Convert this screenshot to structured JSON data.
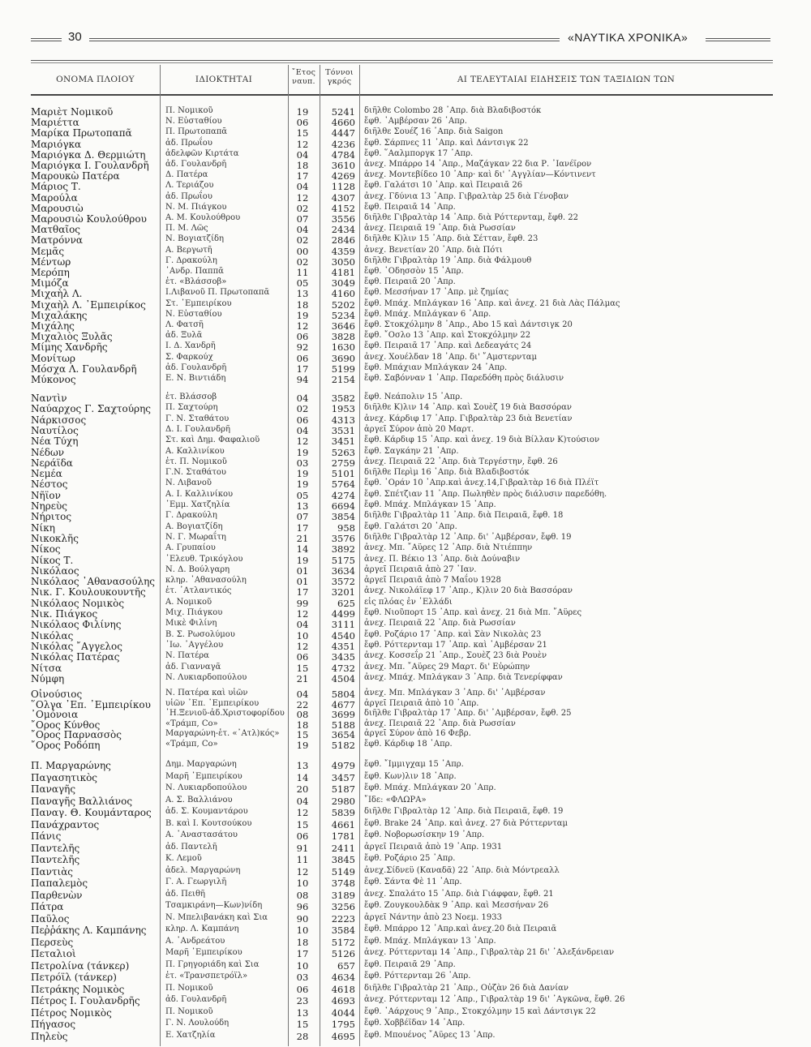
{
  "header": {
    "page_number": "30",
    "journal_title": "«ΝΑΥΤΙΚΑ ΧΡΟΝΙΚΑ»"
  },
  "table": {
    "columns": {
      "name": "ΟΝΟΜΑ ΠΛΟΙΟΥ",
      "owners": "ΙΔΙΟΚΤΗΤΑΙ",
      "year_1": "῎Ετος",
      "year_2": "ναυπ.",
      "tons_1": "Τόννοι",
      "tons_2": "γκρός",
      "news": "ΑΙ ΤΕΛΕΥΤΑΙΑΙ ΕΙΔΗΣΕΙΣ ΤΩΝ ΤΑΞΙΔΙΩΝ ΤΩΝ"
    },
    "groups": [
      {
        "rows": [
          [
            "Μαριὲτ Νομικοῦ",
            "Π. Νομικοῦ",
            "19",
            "5241",
            "διῆλθε Colombo 28 ᾿Απρ. διὰ Βλαδιβοστόκ"
          ],
          [
            "Μαριέττα",
            "Ν. Εὐσταθίου",
            "06",
            "4660",
            "ἔφθ. ᾿Αμβέρσαν 26 ᾿Απρ."
          ],
          [
            "Μαρίκα Πρωτοπαπᾶ",
            "Π. Πρωτοπαπᾶ",
            "15",
            "4447",
            "διῆλθε Σουέζ 16 ᾿Απρ. διὰ Saigon"
          ],
          [
            "Μαριόγκα",
            "ἀδ. Πρωΐου",
            "12",
            "4236",
            "ἔφθ. Σάρπνες 11 ᾿Απρ. καὶ Δάντσιγκ 22"
          ],
          [
            "Μαριόγκα Δ. Θερμιώτη",
            "ἀδελφῶν Κιρτάτα",
            "04",
            "4784",
            "ἔφθ. ῞Ααλμποργκ 17 ᾿Απρ."
          ],
          [
            "Μαριόγκα Ι. Γουλανδρῆ",
            "ἀδ. Γουλανδρῆ",
            "18",
            "3610",
            "ἀνεχ. Μπάρρο 14 ᾿Απρ., Μαζάγκαν 22 δια Ρ. ᾿Ιανέϊρον"
          ],
          [
            "Μαρουκὼ Πατέρα",
            "Δ. Πατέρα",
            "17",
            "4269",
            "ἀνεχ. Μοντεβίδεο 10 ᾿Απρ· καὶ δι' ᾿Αγγλίαν—Κόντινεντ"
          ],
          [
            "Μάριος Τ.",
            "Λ. Τεριάζου",
            "04",
            "1128",
            "ἔφθ. Γαλάτσι 10 ᾿Απρ. καὶ Πειραιᾶ 26"
          ],
          [
            "Μαρούλα",
            "ἀδ. Πρωΐου",
            "12",
            "4307",
            "ἀνεχ. Γδύνια 13 ᾿Απρ. Γιβραλτὰρ 25 διὰ Γένοβαν"
          ],
          [
            "Μαρουσιὼ",
            "Ν. Μ. Πιάγκου",
            "02",
            "4152",
            "ἔφθ. Πειραιᾶ 14 ᾿Απρ."
          ],
          [
            "Μαρουσιὼ Κουλούθρου",
            "Α. Μ. Κουλούθρου",
            "07",
            "3556",
            "διῆλθε Γιβραλτὰρ 14 ᾿Απρ. διὰ Ρόττερνταμ, ἔφθ. 22"
          ],
          [
            "Ματθαῖος",
            "Π. Μ. Λῶς",
            "04",
            "2434",
            "ἀνεχ. Πειραιᾶ 19 ᾿Απρ. διὰ Ρωσσίαν"
          ],
          [
            "Ματρόννα",
            "Ν. Βογιατζίδη",
            "02",
            "2846",
            "διῆλθε Κ)λιν 15 ᾿Απρ. διὰ Σέτταν, ἔφθ. 23"
          ],
          [
            "Μεμᾶς",
            "Α. Βεργωτῆ",
            "00",
            "4359",
            "ἀνεχ. Βενετίαν 20 ᾿Απρ. διὰ Πότι"
          ],
          [
            "Μέντωρ",
            "Γ. Δρακούλη",
            "02",
            "3050",
            "διῆλθε Γιβραλτὰρ 19 ᾿Απρ. διὰ Φάλμουθ"
          ],
          [
            "Μερόπη",
            "᾿Ανδρ. Παππᾶ",
            "11",
            "4181",
            "ἔφθ. ᾿Οδησσὸν 15 ᾿Απρ."
          ],
          [
            "Μιμόζα",
            "ἑτ. «Βλάσσοβ»",
            "05",
            "3049",
            "ἔφθ. Πειραιᾶ 20 ᾿Απρ."
          ],
          [
            "Μιχαὴλ Λ.",
            "Ι.Λιβανοῦ Π. Πρωτοπαπᾶ",
            "13",
            "4160",
            "ἔφθ. Μεσσήναν 17 ᾿Απρ. μὲ ζημίας"
          ],
          [
            "Μιχαὴλ Λ. ᾿Εμπειρίκος",
            "Στ. ᾿Εμπειρίκου",
            "18",
            "5202",
            "ἔφθ. Μπάχ. Μπλάγκαν 16 ᾿Απρ. καὶ ἀνεχ. 21 διὰ Λὰς Πάλμας"
          ],
          [
            "Μιχαλάκης",
            "Ν. Εὐσταθίου",
            "19",
            "5234",
            "ἔφθ. Μπάχ. Μπλάγκαν 6 ᾿Απρ."
          ],
          [
            "Μιχάλης",
            "Λ. Φατσῆ",
            "12",
            "3646",
            "ἔφθ. Στοκχόλμην 8 ᾿Απρ., Abo 15 καὶ Δάντσιγκ 20"
          ],
          [
            "Μιχαλιὸς Ξυλᾶς",
            "ἀδ. Ξυλᾶ",
            "06",
            "3828",
            "ἔφθ. ῎Οσλο 13 ᾿Απρ. καὶ Στοκχόλμην 22"
          ],
          [
            "Μίμης Χανδρῆς",
            "Ι. Δ. Χανδρῆ",
            "92",
            "1630",
            "ἔφθ. Πειραιᾶ 17 ᾿Απρ. καὶ Δεδεαγάτς 24"
          ],
          [
            "Μονίτωρ",
            "Σ. Φαρκούχ",
            "06",
            "3690",
            "ἀνεχ. Χουέλδαν 18 ᾿Απρ. δι' ῎Αμστερνταμ"
          ],
          [
            "Μόσχα Λ. Γουλανδρῆ",
            "ἀδ. Γουλανδρῆ",
            "17",
            "5199",
            "ἔφθ. Μπάχιαν Μπλάγκαν 24 ᾿Απρ."
          ],
          [
            "Μύκονος",
            "Ε. Ν. Βιντιάδη",
            "94",
            "2154",
            "ἔφθ. Σαβόνναν 1 ᾿Απρ. Παρεδόθη πρὸς διάλυσιν"
          ]
        ]
      },
      {
        "rows": [
          [
            "Ναντὶν",
            "ἑτ. Βλάσσοβ",
            "04",
            "3582",
            "ἔφθ. Νεάπολιν 15 ᾿Απρ."
          ],
          [
            "Ναύαρχος Γ. Σαχτούρης",
            "Π. Σαχτούρη",
            "02",
            "1953",
            "διῆλθε Κ)λιν 14 ᾿Απρ. καὶ Σουὲζ 19 διὰ Βασσόραν"
          ],
          [
            "Νάρκισσος",
            "Γ. Ν. Σταθάτου",
            "06",
            "4313",
            "ἀνεχ. Κάρδιφ 17 ᾿Απρ. Γιβραλτὰρ 23 διὰ Βενετίαν"
          ],
          [
            "Ναυτίλος",
            "Δ. Ι. Γουλανδρῆ",
            "04",
            "3531",
            "ἀργεῖ Σύρον ἀπὸ 20 Μαρτ."
          ],
          [
            "Νέα Τύχη",
            "Στ. καὶ Δημ. Φαφαλιοῦ",
            "12",
            "3451",
            "ἔφθ. Κάρδιφ 15 ᾿Απρ. καὶ ἀνεχ. 19 διὰ Βίλλαν Κ)τούσιον"
          ],
          [
            "Νέδων",
            "Α. Καλλινίκου",
            "19",
            "5263",
            "ἔφθ. Σαγκάην 21 ᾿Απρ."
          ],
          [
            "Νεράϊδα",
            "ἑτ. Π. Νομικοῦ",
            "03",
            "2759",
            "ἀνεχ. Πειραιᾶ 22 ᾿Απρ. διὰ Τεργέστην, ἔφθ. 26"
          ],
          [
            "Νεμέα",
            "Γ.Ν. Σταθάτου",
            "19",
            "5101",
            "διῆλθε Περὶμ 16 ᾿Απρ. διὰ Βλαδιβοστόκ"
          ],
          [
            "Νέστος",
            "Ν. Λιβανοῦ",
            "19",
            "5764",
            "ἔφθ. ᾿Οράν 10 ᾿Απρ.καὶ ἀνεχ.14,Γιβραλτὰρ 16 διὰ Πλέϊτ"
          ],
          [
            "Νῆϊον",
            "Α. Ι. Καλλινίκου",
            "05",
            "4274",
            "ἔφθ. Σπέτζιαν 11 ᾿Απρ. Πωληθὲν πρὸς διάλυσιν παρεδόθη."
          ],
          [
            "Νηρεὺς",
            "᾿Εμμ. Χατζηλία",
            "13",
            "6694",
            "ἔφθ. Μπάχ. Μπλάγκαν 15 ᾿Απρ."
          ],
          [
            "Νήριτος",
            "Γ. Δρακούλη",
            "07",
            "3854",
            "διῆλθε Γιβραλτὰρ 11 ᾿Απρ. διὰ Πειραιᾶ, ἔφθ. 18"
          ],
          [
            "Νίκη",
            "Α. Βογιατζίδη",
            "17",
            "958",
            "ἔφθ. Γαλάτσι 20 ᾿Απρ."
          ],
          [
            "Νικοκλῆς",
            "Ν. Γ. Μωραΐτη",
            "21",
            "3576",
            "διῆλθε Γιβραλτὰρ 12 ᾿Απρ. δι' ᾿Αμβέρσαν, ἔφθ. 19"
          ],
          [
            "Νίκος",
            "Α. Γρυπαίου",
            "14",
            "3892",
            "ἀνεχ. Μπ. ῎Αϋρες 12 ᾿Απρ. διὰ Ντιέππην"
          ],
          [
            "Νίκος Τ.",
            "᾿Ελευθ. Τρικόγλου",
            "19",
            "5175",
            "ἀνεχ. Π. Βέκιο 13 ᾿Απρ. διὰ Δούναβιν"
          ],
          [
            "Νικόλαος",
            "Ν. Δ. Βούλγαρη",
            "01",
            "3634",
            "ἀργεῖ Πειραιᾶ ἀπὸ 27 ᾿Ιαν."
          ],
          [
            "Νικόλαος ᾿Αθανασούλης",
            "κληρ. ᾿Αθανασούλη",
            "01",
            "3572",
            "ἀργεῖ Πειραιᾶ ἀπὸ 7 Μαΐου 1928"
          ],
          [
            "Νικ. Γ. Κουλουκουντῆς",
            "ἑτ. ᾿Ατλαντικός",
            "17",
            "3201",
            "ἀνεχ. Νικολάϊεφ 17 ᾿Απρ., Κ)λιν 20 διὰ Βασσόραν"
          ],
          [
            "Νικόλαος Νομικὸς",
            "Α. Νομικοῦ",
            "99",
            "625",
            "εἰς πλόας ἐν ῾Ελλάδι"
          ],
          [
            "Νικ. Πιάγκος",
            "Μιχ. Πιάγκου",
            "12",
            "4499",
            "ἔφθ. Νιοῦπορτ 15 ᾿Απρ. καὶ ἀνεχ. 21 διὰ Μπ. ῎Αϋρες"
          ],
          [
            "Νικόλαος Φιλίνης",
            "Μικὲ Φιλίνη",
            "04",
            "3111",
            "ἀνεχ. Πειραιᾶ 22 ᾿Απρ. διὰ Ρωσσίαν"
          ],
          [
            "Νικόλας",
            "Β. Σ. Ρωσολύμου",
            "10",
            "4540",
            "ἔφθ. Ροζάριο 17 ᾿Απρ. καὶ Σὰν Νικολὰς 23"
          ],
          [
            "Νικόλας ῎Αγγελος",
            "᾿Ιω. ᾿Αγγέλου",
            "12",
            "4351",
            "ἔφθ. Ρόττερνταμ 17 ᾿Απρ. καὶ ᾿Αμβέρσαν 21"
          ],
          [
            "Νικόλας Πατέρας",
            "Ν. Πατέρα",
            "06",
            "3435",
            "ἀνεχ. Κοσσεΐρ 21 ᾿Απρ., Σουὲζ 23 διὰ Ρουὲν"
          ],
          [
            "Νίτσα",
            "ἀδ. Γιανναγᾶ",
            "15",
            "4732",
            "ἀνεχ. Μπ. ῎Αϋρες 29 Μαρτ. δι' Εὐρώπην"
          ],
          [
            "Νύμφη",
            "Ν. Λυκιαρδοπούλου",
            "21",
            "4504",
            "ἀνεχ. Μπάχ. Μπλάγκαν 3 ᾿Απρ. διὰ Τενερίφφαν"
          ]
        ]
      },
      {
        "rows": [
          [
            "Οἰνούσιος",
            "Ν. Πατέρα καὶ υἱῶν",
            "04",
            "5804",
            "ἀνεχ. Μπ. Μπλάγκαν 3 ᾿Απρ. δι' ᾿Αμβέρσαν"
          ],
          [
            "῞Ολγα ᾿Επ. ᾿Εμπειρίκου",
            "υἱῶν ᾿Επ. ᾿Εμπειρίκου",
            "22",
            "4677",
            "ἀργεῖ Πειραιᾶ ἀπὸ 10 ᾿Απρ."
          ],
          [
            "᾿Ομόνοια",
            "῾Η.Ξενιοῦ-ἀδ.Χριστοφορίδου",
            "08",
            "3699",
            "διῆλθε Γιβραλτὰρ 17 ᾿Απρ. δι' ᾿Αμβέρσαν, ἔφθ. 25"
          ],
          [
            "῎Ορος Κύνθος",
            "«Τράμπ, Co»",
            "18",
            "5188",
            "ἀνεχ. Πειραιᾶ 22 ᾿Απρ. διὰ Ρωσσίαν"
          ],
          [
            "῎Ορος Παρνασσὸς",
            "Μαργαρώνη-ἑτ. «᾿Ατλ)κός»",
            "15",
            "3654",
            "ἀργεῖ Σύρον ἀπὸ 16 Φεβρ."
          ],
          [
            "῎Ορος Ροδόπη",
            "«Τράμπ, Co»",
            "19",
            "5182",
            "ἔφθ. Κάρδιφ 18 ᾿Απρ."
          ]
        ]
      },
      {
        "rows": [
          [
            "Π. Μαργαρώνης",
            "Δημ. Μαργαρώνη",
            "13",
            "4979",
            "ἔφθ. ῎Ιμμιγχαμ 15 ᾿Απρ."
          ],
          [
            "Παγασητικὸς",
            "Μαρῆ ᾿Εμπειρίκου",
            "14",
            "3457",
            "ἔφθ. Κων)λιν 18 ᾿Απρ."
          ],
          [
            "Παναγῆς",
            "Ν. Λυκιαρδοπούλου",
            "20",
            "5187",
            "ἔφθ. Μπάχ. Μπλάγκαν 20 ᾿Απρ."
          ],
          [
            "Παναγῆς Βαλλιάνος",
            "Α. Σ. Βαλλιάνου",
            "04",
            "2980",
            "῎Ιδε: «ΦΛΩΡΑ»"
          ],
          [
            "Παναγ. Θ. Κουμάνταρος",
            "ἀδ. Σ. Κουμαντάρου",
            "12",
            "5839",
            "διῆλθε Γιβραλτὰρ 12 ᾿Απρ. διὰ Πειραιᾶ, ἔφθ. 19"
          ],
          [
            "Πανάχραντος",
            "Β. καὶ Ι. Κουτσούκου",
            "15",
            "4661",
            "ἔφθ. Brake 24 ᾿Απρ. καὶ ἀνεχ. 27 διὰ Ρόττερνταμ"
          ],
          [
            "Πάνις",
            "Α. ᾿Αναστασάτου",
            "06",
            "1781",
            "ἔφθ. Νοβορωσίσκην 19 ᾿Απρ."
          ],
          [
            "Παντελῆς",
            "ἀδ. Παντελῆ",
            "91",
            "2411",
            "ἀργεῖ Πειραιᾶ ἀπὸ 19 ᾿Απρ. 1931"
          ],
          [
            "Παντελῆς",
            "Κ. Λεμοῦ",
            "11",
            "3845",
            "ἔφθ. Ροζάριο 25 ᾿Απρ."
          ],
          [
            "Παντιὰς",
            "ἀδελ. Μαργαρώνη",
            "12",
            "5149",
            "ἀνεχ.Σίδνεϋ (Καναδᾶ) 22 ᾿Απρ. διὰ Μόντρεαλλ"
          ],
          [
            "Παπαλεμὸς",
            "Γ. Α. Γεωργιλῆ",
            "10",
            "3748",
            "ἔφθ. Σάντα Φὲ 11 ᾿Απρ."
          ],
          [
            "Παρθενὼν",
            "ἀδ. Πειθῆ",
            "08",
            "3189",
            "ἀνεχ. Σπαλάτο 15 ᾿Απρ. διὰ Γιάφφαν, ἔφθ. 21"
          ],
          [
            "Πάτρα",
            "Τσαμκιράνη—Κων)νίδη",
            "96",
            "3256",
            "ἔφθ. Ζουγκουλδὰκ 9 ᾿Απρ. καὶ Μεσσήναν 26"
          ],
          [
            "Παῦλος",
            "Ν. Μπελιβανάκη καὶ Σια",
            "90",
            "2223",
            "ἀργεῖ Νάντην ἀπὸ 23 Νοεμ. 1933"
          ],
          [
            "Πεῤῥάκης Λ. Καμπάνης",
            "κληρ. Λ. Καμπάνη",
            "10",
            "3584",
            "ἔφθ. Μπάρρο 12 ᾿Απρ.καὶ ἀνεχ.20 διὰ Πειραιᾶ"
          ],
          [
            "Περσεὺς",
            "Α. ᾿Ανδρεάτου",
            "18",
            "5172",
            "ἔφθ. Μπάχ. Μπλάγκαν 13 ᾿Απρ."
          ],
          [
            "Πεταλιοὶ",
            "Μαρῆ ᾿Εμπειρίκου",
            "17",
            "5126",
            "ἀνεχ. Ρόττερνταμ 14 ᾿Απρ., Γιβραλτὰρ 21 δι' ᾿Αλεξάνδρειαν"
          ],
          [
            "Πετρολίνα (τάνκερ)",
            "Π. Γρηγοριάδη καὶ Σια",
            "10",
            "657",
            "ἔφθ. Πειραιᾶ 29 ᾿Απρ."
          ],
          [
            "Πετρόϊλ (τάνκερ)",
            "ἑτ. «Τρανσπετρόϊλ»",
            "03",
            "4634",
            "ἔφθ. Ρόττερνταμ 26 ᾿Απρ."
          ],
          [
            "Πετράκης Νομικὸς",
            "Π. Νομικοῦ",
            "06",
            "4618",
            "διῆλθε Γιβραλτὰρ 21 ᾿Απρ., Οὐζὰν 26 διὰ Δανίαν"
          ],
          [
            "Πέτρος Ι. Γουλανδρῆς",
            "ἀδ. Γουλανδρῆ",
            "23",
            "4693",
            "ἀνεχ. Ρόττερνταμ 12 ᾿Απρ., Γιβραλτὰρ 19 δι' ᾿Αγκῶνα, ἔφθ. 26"
          ],
          [
            "Πέτρος Νομικὸς",
            "Π. Νομικοῦ",
            "13",
            "4044",
            "ἔφθ. ᾿Αάρχους 9 ᾿Απρ., Στοκχόλμην 15 καὶ Δάντσιγκ 22"
          ],
          [
            "Πήγασος",
            "Γ. Ν. Λουλούδη",
            "15",
            "1795",
            "ἔφθ. Χοββέϊδαν 14 ᾿Απρ."
          ],
          [
            "Πηλεὺς",
            "Ε. Χατζηλία",
            "28",
            "4695",
            "ἔφθ. Μπουένος ῎Αϋρες 13 ᾿Απρ."
          ]
        ]
      }
    ]
  }
}
